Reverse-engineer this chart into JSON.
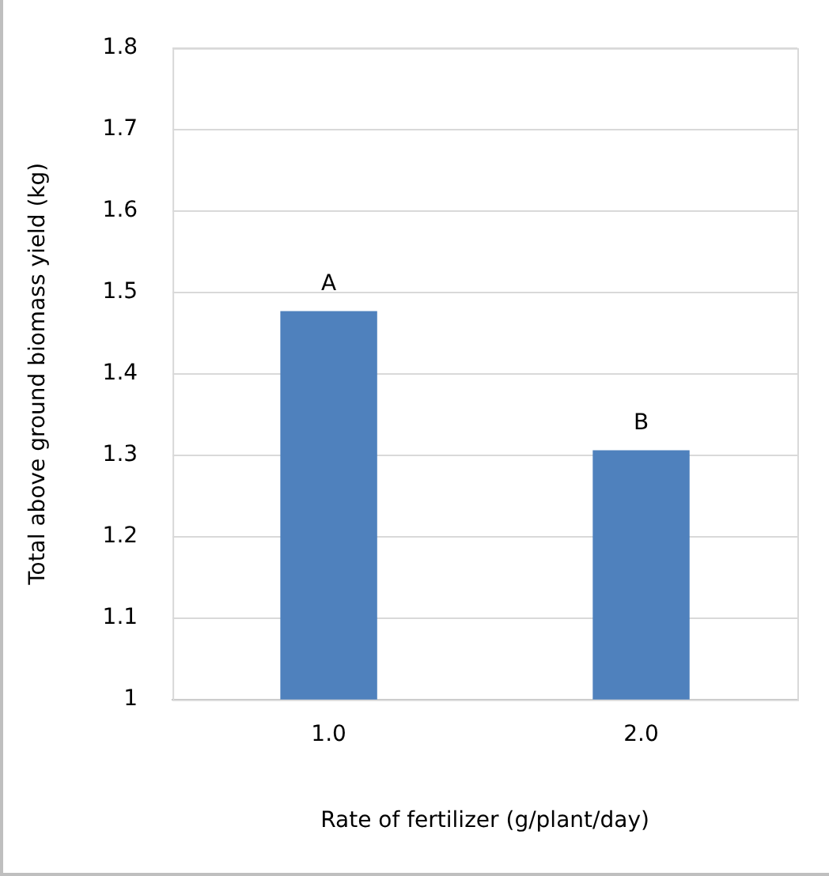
{
  "chart_data": {
    "type": "bar",
    "xlabel": "Rate of fertilizer (g/plant/day)",
    "ylabel": "Total above ground biomass yield (kg)",
    "categories": [
      "1.0",
      "2.0"
    ],
    "values": [
      1.477,
      1.306
    ],
    "color": "#4f81bd",
    "ylim": [
      1,
      1.8
    ],
    "yticks": [
      1,
      1.1,
      1.2,
      1.3,
      1.4,
      1.5,
      1.6,
      1.7,
      1.8
    ],
    "grid": "y",
    "annotations": [
      {
        "text": "A",
        "x": "1.0",
        "y": 1.477
      },
      {
        "text": "B",
        "x": "2.0",
        "y": 1.306
      }
    ]
  }
}
